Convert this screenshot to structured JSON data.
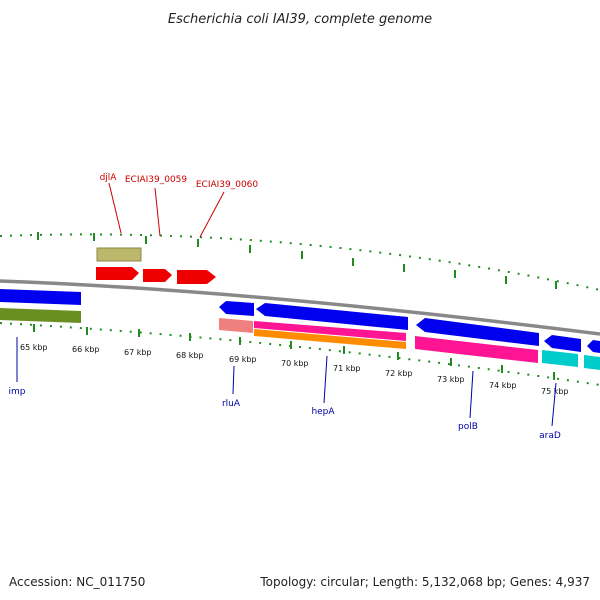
{
  "title": "Escherichia coli IAI39, complete genome",
  "footer": {
    "accession": "Accession: NC_011750",
    "summary": "Topology: circular; Length: 5,132,068 bp; Genes: 4,937"
  },
  "scale": {
    "ticks": [
      {
        "label": "65 kbp",
        "kbp": 65
      },
      {
        "label": "66 kbp",
        "kbp": 66
      },
      {
        "label": "67 kbp",
        "kbp": 67
      },
      {
        "label": "68 kbp",
        "kbp": 68
      },
      {
        "label": "69 kbp",
        "kbp": 69
      },
      {
        "label": "70 kbp",
        "kbp": 70
      },
      {
        "label": "71 kbp",
        "kbp": 71
      },
      {
        "label": "72 kbp",
        "kbp": 72
      },
      {
        "label": "73 kbp",
        "kbp": 73
      },
      {
        "label": "74 kbp",
        "kbp": 74
      },
      {
        "label": "75 kbp",
        "kbp": 75
      }
    ]
  },
  "genes_top": [
    {
      "label": "djlA",
      "color": "#cc0000"
    },
    {
      "label": "ECIAI39_0059",
      "color": "#cc0000"
    },
    {
      "label": "ECIAI39_0060",
      "color": "#cc0000"
    }
  ],
  "genes_bottom": [
    {
      "label": "imp",
      "color": "#0000aa"
    },
    {
      "label": "rluA",
      "color": "#0000aa"
    },
    {
      "label": "hepA",
      "color": "#0000aa"
    },
    {
      "label": "polB",
      "color": "#0000aa"
    },
    {
      "label": "araD",
      "color": "#0000aa"
    }
  ],
  "colors": {
    "cds_forward": "#ee0000",
    "cds_reverse": "#0000ee",
    "olive": "#6b8e23",
    "khaki": "#bdb76b",
    "salmon": "#f08080",
    "magenta": "#ff1493",
    "orange": "#ff8c00",
    "cyan": "#00cccc",
    "backbone": "#888888",
    "dots": "#228b22"
  }
}
